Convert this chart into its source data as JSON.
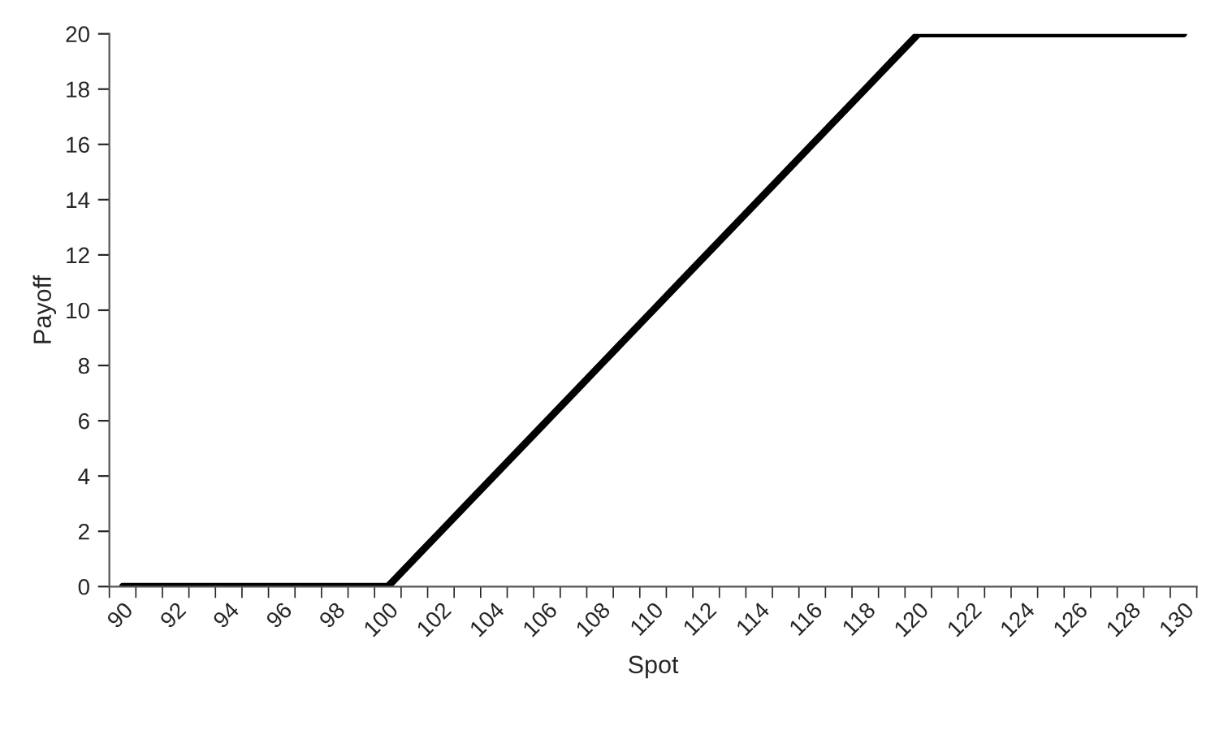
{
  "chart_data": {
    "type": "line",
    "xlabel": "Spot",
    "ylabel": "Payoff",
    "categories": [
      "90",
      null,
      "92",
      null,
      "94",
      null,
      "96",
      null,
      "98",
      null,
      "100",
      null,
      "102",
      null,
      "104",
      null,
      "106",
      null,
      "108",
      null,
      "110",
      null,
      "112",
      null,
      "114",
      null,
      "116",
      null,
      "118",
      null,
      "120",
      null,
      "122",
      null,
      "124",
      null,
      "126",
      null,
      "128",
      null,
      "130"
    ],
    "series": [
      {
        "color": "#000000",
        "values": [
          0,
          0,
          0,
          0,
          0,
          0,
          0,
          0,
          0,
          0,
          0,
          1,
          2,
          3,
          4,
          5,
          6,
          7,
          8,
          9,
          10,
          11,
          12,
          13,
          14,
          15,
          16,
          17,
          18,
          19,
          20,
          20,
          20,
          20,
          20,
          20,
          20,
          20,
          20,
          20,
          20
        ]
      }
    ],
    "ylim": [
      0,
      20
    ],
    "yticks": [
      0,
      2,
      4,
      6,
      8,
      10,
      12,
      14,
      16,
      18,
      20
    ],
    "grid": false,
    "marker": "none",
    "line_style": "solid"
  }
}
